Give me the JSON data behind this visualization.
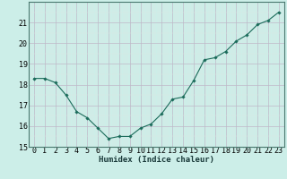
{
  "x": [
    0,
    1,
    2,
    3,
    4,
    5,
    6,
    7,
    8,
    9,
    10,
    11,
    12,
    13,
    14,
    15,
    16,
    17,
    18,
    19,
    20,
    21,
    22,
    23
  ],
  "y": [
    18.3,
    18.3,
    18.1,
    17.5,
    16.7,
    16.4,
    15.9,
    15.4,
    15.5,
    15.5,
    15.9,
    16.1,
    16.6,
    17.3,
    17.4,
    18.2,
    19.2,
    19.3,
    19.6,
    20.1,
    20.4,
    20.9,
    21.1,
    21.5
  ],
  "line_color": "#1a6b5a",
  "marker": "D",
  "marker_size": 1.8,
  "bg_color": "#cceee8",
  "xlabel": "Humidex (Indice chaleur)",
  "ylim": [
    15,
    22
  ],
  "xlim": [
    -0.5,
    23.5
  ],
  "yticks": [
    15,
    16,
    17,
    18,
    19,
    20,
    21
  ],
  "xticks": [
    0,
    1,
    2,
    3,
    4,
    5,
    6,
    7,
    8,
    9,
    10,
    11,
    12,
    13,
    14,
    15,
    16,
    17,
    18,
    19,
    20,
    21,
    22,
    23
  ],
  "xtick_labels": [
    "0",
    "1",
    "2",
    "3",
    "4",
    "5",
    "6",
    "7",
    "8",
    "9",
    "10",
    "11",
    "12",
    "13",
    "14",
    "15",
    "16",
    "17",
    "18",
    "19",
    "20",
    "21",
    "22",
    "23"
  ],
  "grid_major_color": "#c0b8c8",
  "grid_minor_color": "#dde8e4",
  "tick_fontsize": 6.0,
  "xlabel_fontsize": 6.5
}
